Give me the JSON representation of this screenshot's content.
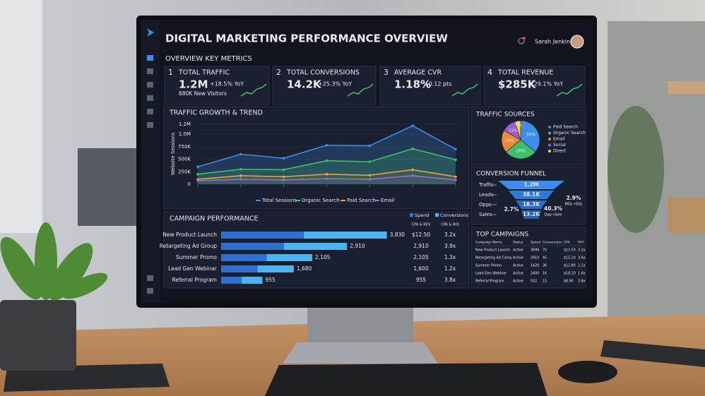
{
  "header": {
    "title": "DIGITAL MARKETING PERFORMANCE OVERVIEW",
    "user": "Sarah Jenkins"
  },
  "metrics": {
    "title": "OVERVIEW KEY METRICS",
    "cards": [
      {
        "index": "1",
        "label": "TOTAL TRAFFIC",
        "value": "1.2M",
        "change": "+18.5% YoY",
        "note": "680K New Visitors"
      },
      {
        "index": "2",
        "label": "TOTAL CONVERSIONS",
        "value": "14.2K",
        "change": "+25.3% YoY"
      },
      {
        "index": "3",
        "label": "AVERAGE CVR",
        "value": "1.18%",
        "change": "+0.12 pts"
      },
      {
        "index": "4",
        "label": "TOTAL REVENUE",
        "value": "$285K",
        "change": "+29.1% YoY"
      }
    ]
  },
  "traffic": {
    "title": "TRAFFIC GROWTH & TREND",
    "y_label": "Website Sessions",
    "ylim": [
      0,
      1200000
    ],
    "yticks": [
      0,
      {
        "value": 250000,
        "label": "250K"
      },
      {
        "value": 500000,
        "label": "500K"
      },
      {
        "value": 750000,
        "label": "750K"
      },
      {
        "value": 1000000,
        "label": "1.0M"
      },
      {
        "value": 1200000,
        "label": "1.2M"
      }
    ],
    "series": [
      {
        "name": "Total Sessions",
        "color": "#3d8ee8",
        "values": [
          350000,
          600000,
          520000,
          780000,
          770000,
          1170000,
          700000
        ]
      },
      {
        "name": "Organic Search",
        "color": "#3fbf6a",
        "values": [
          200000,
          300000,
          290000,
          470000,
          450000,
          710000,
          490000
        ]
      },
      {
        "name": "Paid Search",
        "color": "#f0a030",
        "values": [
          100000,
          170000,
          150000,
          200000,
          180000,
          290000,
          150000
        ]
      },
      {
        "name": "Email",
        "color": "#9b6ad8",
        "values": [
          70000,
          100000,
          85000,
          110000,
          100000,
          170000,
          85000
        ]
      }
    ]
  },
  "sources": {
    "title": "TRAFFIC SOURCES",
    "slices": [
      {
        "name": "Paid Search",
        "color": "#3d8ee8",
        "value": 36,
        "label": "36%"
      },
      {
        "name": "Organic Search",
        "color": "#3fbf6a",
        "value": 28,
        "label": "28%"
      },
      {
        "name": "Email",
        "color": "#f08a30",
        "value": 19,
        "label": "19%"
      },
      {
        "name": "Social",
        "color": "#9b5ad8",
        "value": 12,
        "label": "12%"
      },
      {
        "name": "Direct",
        "color": "#f0d040",
        "value": 5,
        "label": "5%"
      }
    ]
  },
  "funnel": {
    "title": "CONVERSION FUNNEL",
    "stages": [
      {
        "name": "Traffic",
        "value": "1.2M"
      },
      {
        "name": "Leads",
        "value": "38.1K"
      },
      {
        "name": "Opps",
        "value": "18.3K"
      },
      {
        "name": "Sales",
        "value": "13.2K"
      }
    ],
    "rates": [
      {
        "value": "2.9%",
        "label": "MQL→SQL"
      },
      {
        "value": "40.3%",
        "label": "Opp→Sale"
      },
      {
        "value": "2.7%"
      }
    ]
  },
  "campaigns": {
    "title": "CAMPAIGN PERFORMANCE",
    "legend": [
      "Spend",
      "Conversions"
    ],
    "columns": [
      "CPA & REV",
      "CPA & ROI"
    ],
    "xlim": [
      0,
      4000
    ],
    "rows": [
      {
        "name": "New Product Launch",
        "value": 3830,
        "value_label": "3,830",
        "cpa": "$12.50",
        "roi": "3.2x"
      },
      {
        "name": "Retargeting Ad Group",
        "value": 2910,
        "value_label": "2,910",
        "cpa": "2,910",
        "roi": "3.9x"
      },
      {
        "name": "Summer Promo",
        "value": 2105,
        "value_label": "2,105",
        "cpa": "2,105",
        "roi": "1.3x"
      },
      {
        "name": "Lead Gen Webinar",
        "value": 1680,
        "value_label": "1,680",
        "cpa": "1,600",
        "roi": "1.2x"
      },
      {
        "name": "Referral Program",
        "value": 955,
        "value_label": "955",
        "cpa": "955",
        "roi": "3.8x"
      }
    ]
  },
  "top": {
    "title": "TOP CAMPAIGNS",
    "columns": [
      "Campaign Name",
      "Status",
      "Spend",
      "Conversions",
      "CPA",
      "ROI"
    ],
    "rows": [
      [
        "New Product Launch",
        "Active",
        "3899",
        "70",
        "$13.50",
        "3.2x"
      ],
      [
        "Retargeting Ad Camp",
        "Active",
        "2910",
        "45",
        "$15.20",
        "3.6x"
      ],
      [
        "Summer Promo",
        "Active",
        "1420",
        "36",
        "$12.80",
        "2.1x"
      ],
      [
        "Lead Gen Webinar",
        "Active",
        "2400",
        "16",
        "$18.10",
        "1.6x"
      ],
      [
        "Referral Program",
        "Active",
        "502",
        "15",
        "$8.90",
        "3.8x"
      ]
    ]
  }
}
